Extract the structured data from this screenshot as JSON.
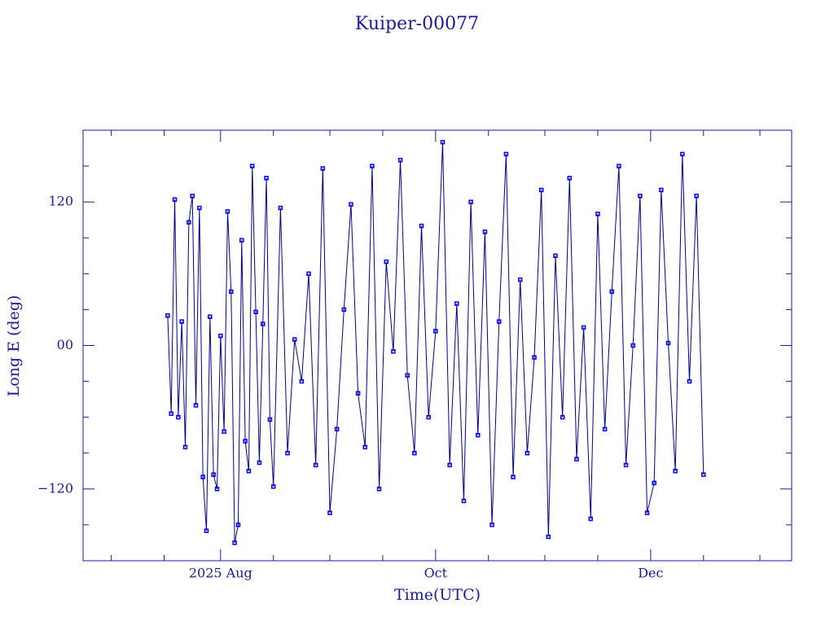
{
  "chart_data": {
    "type": "line",
    "title": "Kuiper-00077",
    "x_label": "Time(UTC)",
    "y_label": "Long E (deg)",
    "line_color": "#00008b",
    "marker_color": "#0000ff",
    "marker": "square",
    "frame_color": "#1a1a9c",
    "xlim": [
      174,
      375
    ],
    "xticks": [
      {
        "value": 213,
        "label": "2025 Aug"
      },
      {
        "value": 274,
        "label": "Oct"
      },
      {
        "value": 335,
        "label": "Dec"
      }
    ],
    "xminorticks": [
      182,
      197,
      228,
      244,
      259,
      289,
      305,
      320,
      350,
      366
    ],
    "ylim": [
      -180,
      180
    ],
    "yticks": [
      {
        "value": -120,
        "label": "−120"
      },
      {
        "value": 0,
        "label": "00"
      },
      120
    ],
    "yminorticks": [
      -150,
      -90,
      -60,
      -30,
      30,
      60,
      90,
      150
    ],
    "x": [
      198,
      199,
      200,
      201,
      202,
      203,
      204,
      205,
      206,
      207,
      208,
      209,
      210,
      211,
      212,
      213,
      214,
      215,
      216,
      217,
      218,
      219,
      220,
      221,
      222,
      223,
      224,
      225,
      226,
      227,
      228,
      230,
      232,
      234,
      236,
      238,
      240,
      242,
      244,
      246,
      248,
      250,
      252,
      254,
      256,
      258,
      260,
      262,
      264,
      266,
      268,
      270,
      272,
      274,
      276,
      278,
      280,
      282,
      284,
      286,
      288,
      290,
      292,
      294,
      296,
      298,
      300,
      302,
      304,
      306,
      308,
      310,
      312,
      314,
      316,
      318,
      320,
      322,
      324,
      326,
      328,
      330,
      332,
      334,
      336,
      338,
      340,
      342,
      344,
      346,
      348,
      350
    ],
    "values": [
      25,
      -57,
      122,
      -60,
      20,
      -85,
      103,
      125,
      -50,
      115,
      -110,
      -155,
      24,
      -108,
      -120,
      8,
      -72,
      112,
      45,
      -165,
      -150,
      88,
      -80,
      -105,
      150,
      28,
      -98,
      18,
      140,
      -62,
      -118,
      115,
      -90,
      5,
      -30,
      60,
      -100,
      148,
      -140,
      -70,
      30,
      118,
      -40,
      -85,
      150,
      -120,
      70,
      -5,
      155,
      -25,
      -90,
      100,
      -60,
      12,
      170,
      -100,
      35,
      -130,
      120,
      -75,
      95,
      -150,
      20,
      160,
      -110,
      55,
      -90,
      -10,
      130,
      -160,
      75,
      -60,
      140,
      -95,
      15,
      -145,
      110,
      -70,
      45,
      150,
      -100,
      0,
      125,
      -140,
      -115,
      130,
      2,
      -105,
      160,
      -30,
      125,
      -108
    ]
  }
}
